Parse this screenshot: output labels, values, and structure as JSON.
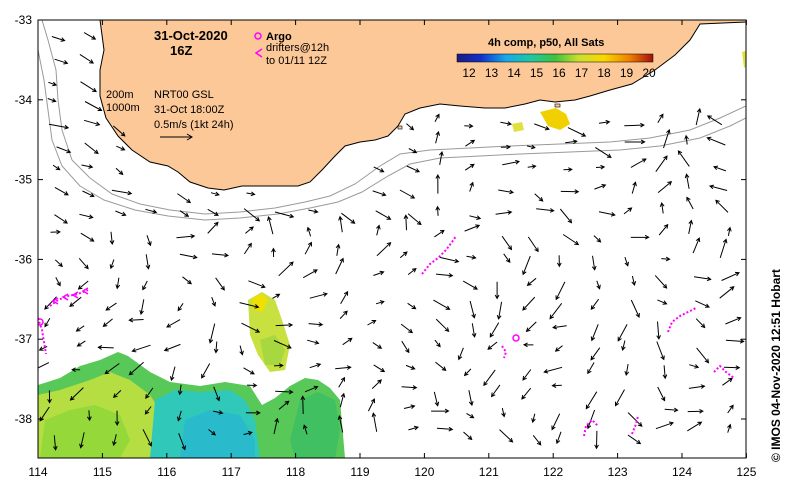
{
  "map": {
    "timestamp": "31-Oct-2020",
    "timestamp_hour": "16Z",
    "product_lines": [
      "NRT00 GSL",
      "31-Oct 18:00Z",
      "0.5m/s (1kt 24h)"
    ],
    "isobaths": [
      "200m",
      "1000m"
    ],
    "legend": {
      "argo_label": "Argo",
      "drifters_line1": "drifters@12h",
      "drifters_line2": "to 01/11 12Z"
    },
    "colorbar": {
      "title": "4h comp, p50, All Sats",
      "ticks": [
        "12",
        "13",
        "14",
        "15",
        "16",
        "17",
        "18",
        "19",
        "20"
      ]
    },
    "axes": {
      "x_ticks": [
        "114",
        "115",
        "116",
        "117",
        "118",
        "119",
        "120",
        "121",
        "122",
        "123",
        "124",
        "125"
      ],
      "y_ticks": [
        "-33",
        "-34",
        "-35",
        "-36",
        "-37",
        "-38"
      ]
    },
    "credit": "© IMOS 04-Nov-2020 12:51 Hobart",
    "colors": {
      "land": "#fcc898",
      "argo": "#ff00ff",
      "drifter": "#ff00ff",
      "isobath": "#999999"
    }
  }
}
